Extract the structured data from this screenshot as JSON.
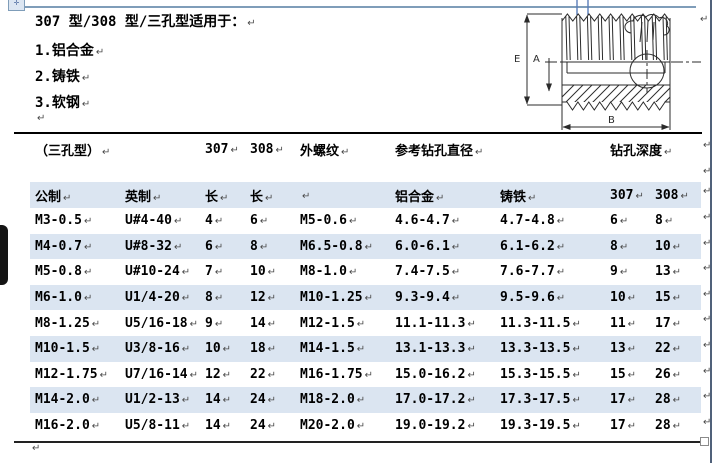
{
  "intro": {
    "title": "307 型/308 型/三孔型适用于：",
    "items": [
      "1.铝合金",
      "2.铸铁",
      "3.软钢"
    ]
  },
  "marks": {
    "pilcrow": "↵",
    "move_handle": "✛"
  },
  "drawing": {
    "description": "threaded-insert-cross-section",
    "labels": {
      "e": "E",
      "a": "A",
      "b": "B"
    }
  },
  "table": {
    "group_header": [
      "（三孔型）",
      "307",
      "308",
      "外螺纹",
      "参考钻孔直径",
      "钻孔深度"
    ],
    "column_header": [
      "公制",
      "英制",
      "长",
      "长",
      "",
      "铝合金",
      "铸铁",
      "307",
      "308"
    ],
    "rows": [
      [
        "M3-0.5",
        "U#4-40",
        "4",
        "6",
        "M5-0.6",
        "4.6-4.7",
        "4.7-4.8",
        "6",
        "8"
      ],
      [
        "M4-0.7",
        "U#8-32",
        "6",
        "8",
        "M6.5-0.8",
        "6.0-6.1",
        "6.1-6.2",
        "8",
        "10"
      ],
      [
        "M5-0.8",
        "U#10-24",
        "7",
        "10",
        "M8-1.0",
        "7.4-7.5",
        "7.6-7.7",
        "9",
        "13"
      ],
      [
        "M6-1.0",
        "U1/4-20",
        "8",
        "12",
        "M10-1.25",
        "9.3-9.4",
        "9.5-9.6",
        "10",
        "15"
      ],
      [
        "M8-1.25",
        "U5/16-18",
        "9",
        "14",
        "M12-1.5",
        "11.1-11.3",
        "11.3-11.5",
        "11",
        "17"
      ],
      [
        "M10-1.5",
        "U3/8-16",
        "10",
        "18",
        "M14-1.5",
        "13.1-13.3",
        "13.3-13.5",
        "13",
        "22"
      ],
      [
        "M12-1.75",
        "U7/16-14",
        "12",
        "22",
        "M16-1.75",
        "15.0-16.2",
        "15.3-15.5",
        "15",
        "26"
      ],
      [
        "M14-2.0",
        "U1/2-13",
        "14",
        "24",
        "M18-2.0",
        "17.0-17.2",
        "17.3-17.5",
        "17",
        "28"
      ],
      [
        "M16-2.0",
        "U5/8-11",
        "14",
        "24",
        "M20-2.0",
        "19.0-19.2",
        "19.3-19.5",
        "17",
        "28"
      ]
    ]
  },
  "colors": {
    "row_shade": "#dbe5f1",
    "top_rule": "#7f9db9",
    "table_border": "#000000"
  }
}
